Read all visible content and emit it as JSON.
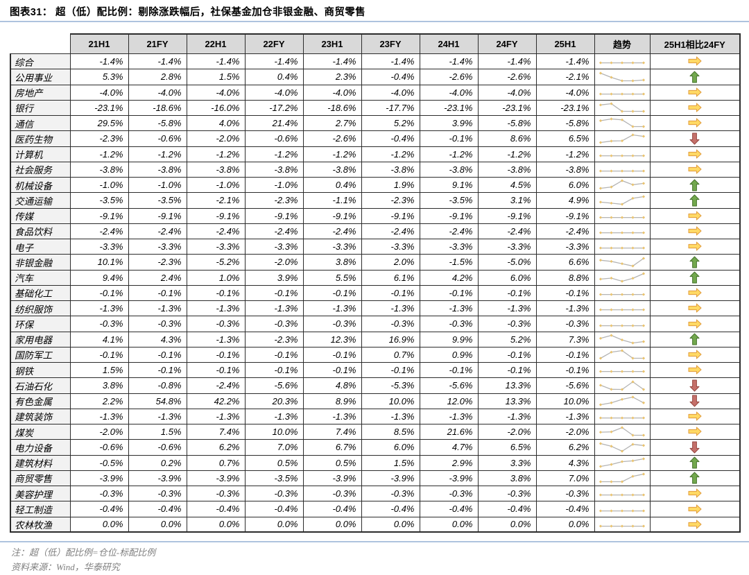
{
  "title": "图表31：  超（低）配比例：剔除涨跌幅后，社保基金加仓非银金融、商贸零售",
  "header": {
    "corner": "",
    "periods": [
      "21H1",
      "21FY",
      "22H1",
      "22FY",
      "23H1",
      "23FY",
      "24H1",
      "24FY",
      "25H1"
    ],
    "trend": "趋势",
    "compare": "25H1相比24FY"
  },
  "notes": {
    "note": "注：超（低）配比例=仓位-标配比例",
    "source": "资料来源：Wind，华泰研究"
  },
  "colors": {
    "up_fill": "#72a84d",
    "up_stroke": "#46722c",
    "down_fill": "#c5706a",
    "down_stroke": "#964741",
    "flat_fill": "#ffd964",
    "flat_stroke": "#e09b3c",
    "spark_line": "#b3b3b3",
    "spark_marker": "#e9c36f",
    "divider": "#aec3de",
    "header_bg": "#d9d9d9",
    "industry_bg": "#f2f2f2"
  },
  "chart_data": {
    "type": "table",
    "title": "超（低）配比例：剔除涨跌幅后，社保基金加仓非银金融、商贸零售",
    "columns": [
      "21H1",
      "21FY",
      "22H1",
      "22FY",
      "23H1",
      "23FY",
      "24H1",
      "24FY",
      "25H1"
    ],
    "trend_note": "sparkline of last 5 periods (23H1-25H1)",
    "value_unit": "%",
    "rows": [
      {
        "industry": "综合",
        "values": [
          -1.4,
          -1.4,
          -1.4,
          -1.4,
          -1.4,
          -1.4,
          -1.4,
          -1.4,
          -1.4
        ],
        "compare": "flat"
      },
      {
        "industry": "公用事业",
        "values": [
          5.3,
          2.8,
          1.5,
          0.4,
          2.3,
          -0.4,
          -2.6,
          -2.6,
          -2.1
        ],
        "compare": "up"
      },
      {
        "industry": "房地产",
        "values": [
          -4.0,
          -4.0,
          -4.0,
          -4.0,
          -4.0,
          -4.0,
          -4.0,
          -4.0,
          -4.0
        ],
        "compare": "flat"
      },
      {
        "industry": "银行",
        "values": [
          -23.1,
          -18.6,
          -16.0,
          -17.2,
          -18.6,
          -17.7,
          -23.1,
          -23.1,
          -23.1
        ],
        "compare": "flat"
      },
      {
        "industry": "通信",
        "values": [
          29.5,
          -5.8,
          4.0,
          21.4,
          2.7,
          5.2,
          3.9,
          -5.8,
          -5.8
        ],
        "compare": "flat"
      },
      {
        "industry": "医药生物",
        "values": [
          -2.3,
          -0.6,
          -2.0,
          -0.6,
          -2.6,
          -0.4,
          -0.1,
          8.6,
          6.5
        ],
        "compare": "down"
      },
      {
        "industry": "计算机",
        "values": [
          -1.2,
          -1.2,
          -1.2,
          -1.2,
          -1.2,
          -1.2,
          -1.2,
          -1.2,
          -1.2
        ],
        "compare": "flat"
      },
      {
        "industry": "社会服务",
        "values": [
          -3.8,
          -3.8,
          -3.8,
          -3.8,
          -3.8,
          -3.8,
          -3.8,
          -3.8,
          -3.8
        ],
        "compare": "flat"
      },
      {
        "industry": "机械设备",
        "values": [
          -1.0,
          -1.0,
          -1.0,
          -1.0,
          0.4,
          1.9,
          9.1,
          4.5,
          6.0
        ],
        "compare": "up"
      },
      {
        "industry": "交通运输",
        "values": [
          -3.5,
          -3.5,
          -2.1,
          -2.3,
          -1.1,
          -2.3,
          -3.5,
          3.1,
          4.9
        ],
        "compare": "up"
      },
      {
        "industry": "传媒",
        "values": [
          -9.1,
          -9.1,
          -9.1,
          -9.1,
          -9.1,
          -9.1,
          -9.1,
          -9.1,
          -9.1
        ],
        "compare": "flat"
      },
      {
        "industry": "食品饮料",
        "values": [
          -2.4,
          -2.4,
          -2.4,
          -2.4,
          -2.4,
          -2.4,
          -2.4,
          -2.4,
          -2.4
        ],
        "compare": "flat"
      },
      {
        "industry": "电子",
        "values": [
          -3.3,
          -3.3,
          -3.3,
          -3.3,
          -3.3,
          -3.3,
          -3.3,
          -3.3,
          -3.3
        ],
        "compare": "flat"
      },
      {
        "industry": "非银金融",
        "values": [
          10.1,
          -2.3,
          -5.2,
          -2.0,
          3.8,
          2.0,
          -1.5,
          -5.0,
          6.6
        ],
        "compare": "up"
      },
      {
        "industry": "汽车",
        "values": [
          9.4,
          2.4,
          1.0,
          3.9,
          5.5,
          6.1,
          4.2,
          6.0,
          8.8
        ],
        "compare": "up"
      },
      {
        "industry": "基础化工",
        "values": [
          -0.1,
          -0.1,
          -0.1,
          -0.1,
          -0.1,
          -0.1,
          -0.1,
          -0.1,
          -0.1
        ],
        "compare": "flat"
      },
      {
        "industry": "纺织服饰",
        "values": [
          -1.3,
          -1.3,
          -1.3,
          -1.3,
          -1.3,
          -1.3,
          -1.3,
          -1.3,
          -1.3
        ],
        "compare": "flat"
      },
      {
        "industry": "环保",
        "values": [
          -0.3,
          -0.3,
          -0.3,
          -0.3,
          -0.3,
          -0.3,
          -0.3,
          -0.3,
          -0.3
        ],
        "compare": "flat"
      },
      {
        "industry": "家用电器",
        "values": [
          4.1,
          4.3,
          -1.3,
          -2.3,
          12.3,
          16.9,
          9.9,
          5.2,
          7.3
        ],
        "compare": "up"
      },
      {
        "industry": "国防军工",
        "values": [
          -0.1,
          -0.1,
          -0.1,
          -0.1,
          -0.1,
          0.7,
          0.9,
          -0.1,
          -0.1
        ],
        "compare": "flat"
      },
      {
        "industry": "钢铁",
        "values": [
          1.5,
          -0.1,
          -0.1,
          -0.1,
          -0.1,
          -0.1,
          -0.1,
          -0.1,
          -0.1
        ],
        "compare": "flat"
      },
      {
        "industry": "石油石化",
        "values": [
          3.8,
          -0.8,
          -2.4,
          -5.6,
          4.8,
          -5.3,
          -5.6,
          13.3,
          -5.6
        ],
        "compare": "down"
      },
      {
        "industry": "有色金属",
        "values": [
          2.2,
          54.8,
          42.2,
          20.3,
          8.9,
          10.0,
          12.0,
          13.3,
          10.0
        ],
        "compare": "down"
      },
      {
        "industry": "建筑装饰",
        "values": [
          -1.3,
          -1.3,
          -1.3,
          -1.3,
          -1.3,
          -1.3,
          -1.3,
          -1.3,
          -1.3
        ],
        "compare": "flat"
      },
      {
        "industry": "煤炭",
        "values": [
          -2.0,
          1.5,
          7.4,
          10.0,
          7.4,
          8.5,
          21.6,
          -2.0,
          -2.0
        ],
        "compare": "flat"
      },
      {
        "industry": "电力设备",
        "values": [
          -0.6,
          -0.6,
          6.2,
          7.0,
          6.7,
          6.0,
          4.7,
          6.5,
          6.2
        ],
        "compare": "down"
      },
      {
        "industry": "建筑材料",
        "values": [
          -0.5,
          0.2,
          0.7,
          0.5,
          0.5,
          1.5,
          2.9,
          3.3,
          4.3
        ],
        "compare": "up"
      },
      {
        "industry": "商贸零售",
        "values": [
          -3.9,
          -3.9,
          -3.9,
          -3.5,
          -3.9,
          -3.9,
          -3.9,
          3.8,
          7.0
        ],
        "compare": "up"
      },
      {
        "industry": "美容护理",
        "values": [
          -0.3,
          -0.3,
          -0.3,
          -0.3,
          -0.3,
          -0.3,
          -0.3,
          -0.3,
          -0.3
        ],
        "compare": "flat"
      },
      {
        "industry": "轻工制造",
        "values": [
          -0.4,
          -0.4,
          -0.4,
          -0.4,
          -0.4,
          -0.4,
          -0.4,
          -0.4,
          -0.4
        ],
        "compare": "flat"
      },
      {
        "industry": "农林牧渔",
        "values": [
          0.0,
          0.0,
          0.0,
          0.0,
          0.0,
          0.0,
          0.0,
          0.0,
          0.0
        ],
        "compare": "flat"
      }
    ]
  }
}
